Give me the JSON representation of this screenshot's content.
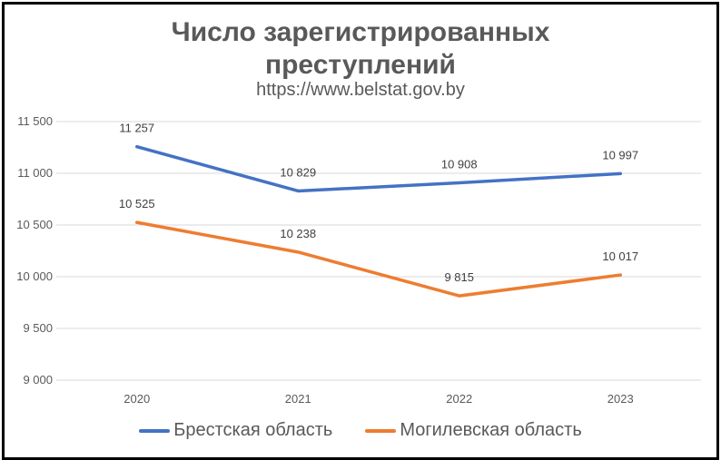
{
  "chart_data": {
    "type": "line",
    "title": "Число зарегистрированных преступлений",
    "title_lines": [
      "Число зарегистрированных",
      "преступлений"
    ],
    "subtitle": "https://www.belstat.gov.by",
    "categories": [
      "2020",
      "2021",
      "2022",
      "2023"
    ],
    "series": [
      {
        "name": "Брестская область",
        "color": "#4472C4",
        "values": [
          11257,
          10829,
          10908,
          10997
        ],
        "labels": [
          "11 257",
          "10 829",
          "10 908",
          "10 997"
        ]
      },
      {
        "name": "Могилевская область",
        "color": "#ED7D31",
        "values": [
          10525,
          10238,
          9815,
          10017
        ],
        "labels": [
          "10 525",
          "10 238",
          "9 815",
          "10 017"
        ]
      }
    ],
    "ylim": [
      9000,
      11500
    ],
    "yticks": [
      9000,
      9500,
      10000,
      10500,
      11000,
      11500
    ],
    "ytick_labels": [
      "9 000",
      "9 500",
      "10 000",
      "10 500",
      "11 000",
      "11 500"
    ],
    "grid": true,
    "legend_position": "bottom",
    "xlabel": "",
    "ylabel": ""
  }
}
